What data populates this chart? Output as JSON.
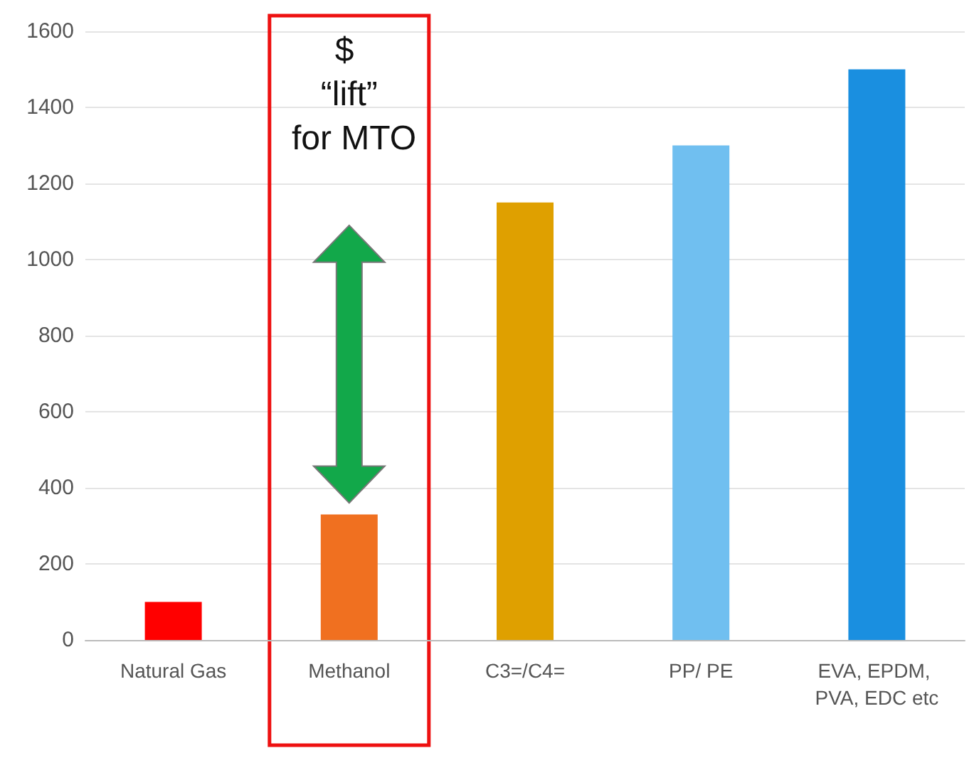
{
  "chart_data": {
    "type": "bar",
    "categories": [
      "Natural Gas",
      "Methanol",
      "C3=/C4=",
      "PP/ PE",
      "EVA, EPDM, PVA, EDC etc"
    ],
    "values": [
      100,
      330,
      1150,
      1300,
      1500
    ],
    "colors": [
      "#ff0000",
      "#f07020",
      "#dfa000",
      "#70bff0",
      "#1a8fe0"
    ],
    "ylim": [
      0,
      1600
    ],
    "yticks": [
      0,
      200,
      400,
      600,
      800,
      1000,
      1200,
      1400,
      1600
    ],
    "grid": "y",
    "annotations": [
      "$ “lift” for MTO"
    ]
  }
}
